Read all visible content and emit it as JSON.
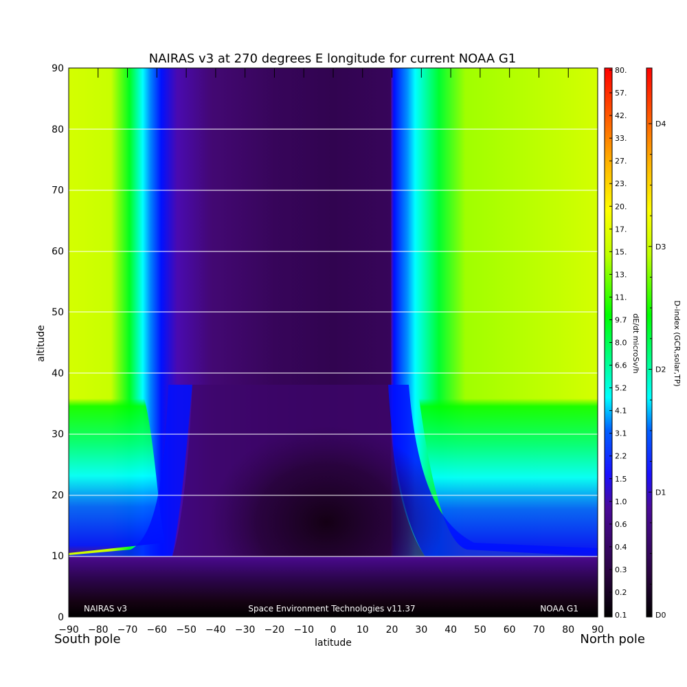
{
  "chart_data": {
    "type": "heatmap",
    "title": "NAIRAS v3 at 270 degrees E longitude for current NOAA G1",
    "xlabel": "latitude",
    "ylabel": "altitude",
    "x_ticks": [
      "-90",
      "-80",
      "-70",
      "-60",
      "-50",
      "-40",
      "-30",
      "-20",
      "-10",
      "0",
      "10",
      "20",
      "30",
      "40",
      "50",
      "60",
      "70",
      "80",
      "90"
    ],
    "y_ticks": [
      "0",
      "10",
      "20",
      "30",
      "40",
      "50",
      "60",
      "70",
      "80",
      "90"
    ],
    "xlim": [
      -90,
      90
    ],
    "ylim": [
      0,
      90
    ],
    "x_end_labels": {
      "left": "South pole",
      "right": "North pole"
    },
    "annotations": {
      "left": "NAIRAS v3",
      "center": "Space Environment Technologies v11.37",
      "right": "NOAA G1"
    },
    "grid": "horizontal lines at y ticks",
    "colorbar_dose": {
      "label": "dE/dt microSv/h",
      "ticks": [
        "0.1",
        "0.2",
        "0.3",
        "0.4",
        "0.6",
        "1.0",
        "1.5",
        "2.2",
        "3.1",
        "4.1",
        "5.2",
        "6.6",
        "8.0",
        "9.7",
        "11.",
        "13.",
        "15.",
        "17.",
        "20.",
        "23.",
        "27.",
        "33.",
        "42.",
        "57.",
        "80."
      ]
    },
    "colorbar_dindex": {
      "label": "D-index (GCR,solar,TP)",
      "ticks": [
        "D0",
        "D1",
        "D2",
        "D3",
        "D4"
      ]
    },
    "colors": {
      "low": "#1a0019",
      "purple": "#4a0a7d",
      "blue": "#0020ff",
      "cyan": "#00ffff",
      "green": "#00ff00",
      "yellow": "#ffff00",
      "red": "#ff0000"
    }
  }
}
